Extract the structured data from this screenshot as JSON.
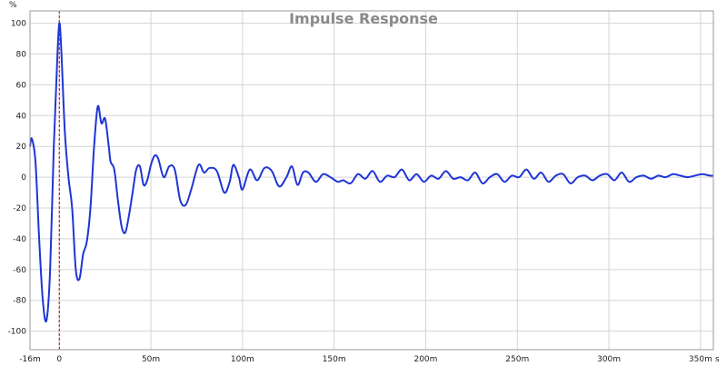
{
  "chart_data": {
    "type": "line",
    "title": "Impulse Response",
    "ylabel": "%",
    "xlabel": "s",
    "xlim": [
      -0.016,
      0.357
    ],
    "ylim": [
      -112,
      108
    ],
    "grid": true,
    "x_ticks": [
      {
        "value": -0.016,
        "label": "-16m"
      },
      {
        "value": 0,
        "label": "0"
      },
      {
        "value": 0.05,
        "label": "50m"
      },
      {
        "value": 0.1,
        "label": "100m"
      },
      {
        "value": 0.15,
        "label": "150m"
      },
      {
        "value": 0.2,
        "label": "200m"
      },
      {
        "value": 0.25,
        "label": "250m"
      },
      {
        "value": 0.3,
        "label": "300m"
      },
      {
        "value": 0.35,
        "label": "350m"
      }
    ],
    "y_ticks": [
      100,
      80,
      60,
      40,
      20,
      0,
      -20,
      -40,
      -60,
      -80,
      -100
    ],
    "marker_x": 0,
    "colors": {
      "line": "#1f35d6",
      "marker": "#cc0000",
      "grid": "#d4d4d4",
      "title": "#8a8a8a"
    },
    "series": [
      {
        "x": [
          -0.016,
          -0.015,
          -0.013,
          -0.011,
          -0.009,
          -0.007,
          -0.005,
          -0.003,
          -0.001,
          0.0,
          0.001,
          0.003,
          0.005,
          0.007,
          0.009,
          0.011,
          0.013,
          0.015,
          0.017,
          0.019,
          0.021,
          0.023,
          0.025,
          0.027,
          0.028,
          0.03,
          0.032,
          0.034,
          0.036,
          0.038,
          0.04,
          0.042,
          0.044,
          0.046,
          0.048,
          0.05,
          0.052,
          0.054,
          0.057,
          0.06,
          0.063,
          0.066,
          0.069,
          0.072,
          0.076,
          0.079,
          0.082,
          0.086,
          0.09,
          0.093,
          0.095,
          0.098,
          0.1,
          0.104,
          0.108,
          0.112,
          0.116,
          0.12,
          0.124,
          0.127,
          0.13,
          0.133,
          0.136,
          0.14,
          0.144,
          0.148,
          0.152,
          0.155,
          0.159,
          0.163,
          0.167,
          0.171,
          0.175,
          0.179,
          0.183,
          0.187,
          0.191,
          0.195,
          0.199,
          0.203,
          0.207,
          0.211,
          0.215,
          0.219,
          0.223,
          0.227,
          0.231,
          0.235,
          0.239,
          0.243,
          0.247,
          0.251,
          0.255,
          0.259,
          0.263,
          0.267,
          0.271,
          0.275,
          0.279,
          0.283,
          0.287,
          0.291,
          0.295,
          0.299,
          0.303,
          0.307,
          0.311,
          0.315,
          0.319,
          0.323,
          0.327,
          0.331,
          0.335,
          0.339,
          0.343,
          0.347,
          0.351,
          0.355,
          0.357
        ],
        "y": [
          20,
          25,
          10,
          -40,
          -80,
          -93,
          -60,
          20,
          80,
          100,
          85,
          30,
          0,
          -20,
          -60,
          -66,
          -50,
          -42,
          -20,
          20,
          46,
          35,
          38,
          20,
          10,
          5,
          -15,
          -32,
          -36,
          -25,
          -10,
          5,
          7,
          -5,
          -2,
          8,
          14,
          12,
          0,
          7,
          5,
          -15,
          -18,
          -8,
          8,
          3,
          6,
          4,
          -10,
          -3,
          8,
          0,
          -8,
          5,
          -2,
          6,
          4,
          -6,
          0,
          7,
          -5,
          3,
          3,
          -3,
          2,
          0,
          -3,
          -2,
          -4,
          2,
          -1,
          4,
          -3,
          1,
          0,
          5,
          -2,
          2,
          -3,
          1,
          -1,
          4,
          -1,
          0,
          -2,
          3,
          -4,
          0,
          2,
          -3,
          1,
          0,
          5,
          -1,
          3,
          -3,
          1,
          2,
          -4,
          0,
          1,
          -2,
          1,
          2,
          -2,
          3,
          -3,
          0,
          1,
          -1,
          1,
          0,
          2,
          1,
          0,
          1,
          2,
          1,
          1
        ]
      }
    ]
  }
}
